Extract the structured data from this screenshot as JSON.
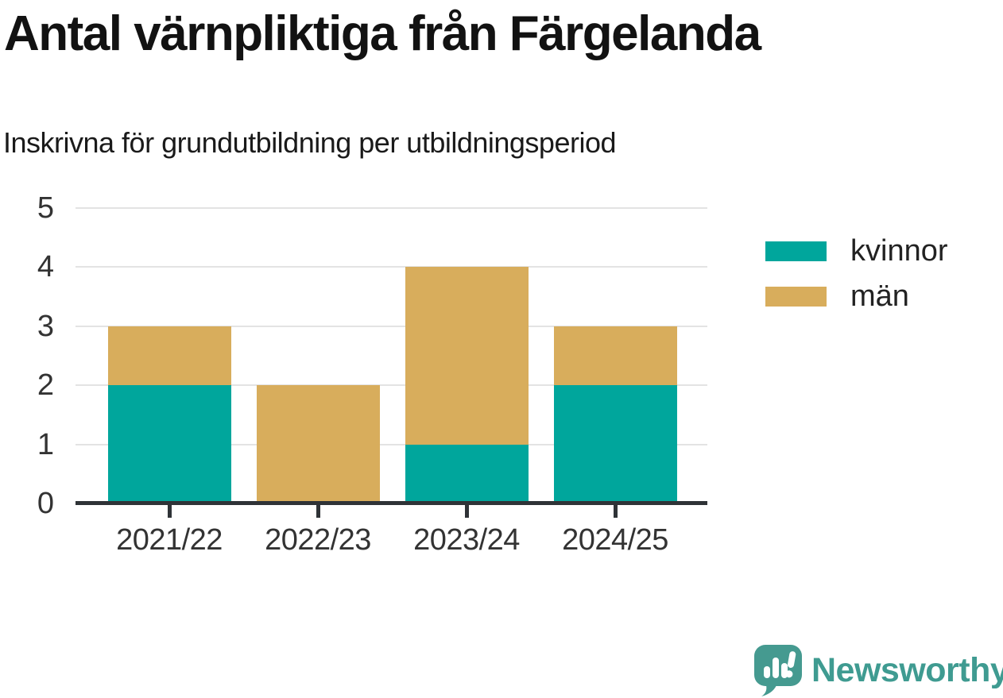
{
  "header": {
    "title": "Antal värnpliktiga från Färgelanda",
    "subtitle": "Inskrivna för grundutbildning per utbildningsperiod"
  },
  "footer": {
    "brand": "Newsworthy"
  },
  "colors": {
    "kvinnor": "#00A69C",
    "man": "#D8AD5C",
    "axis": "#2F3337",
    "grid": "#E3E3E3",
    "tick_label": "#333333",
    "brand_teal": "#3F9B91"
  },
  "chart_data": {
    "type": "bar",
    "stacked": true,
    "title": "Antal värnpliktiga från Färgelanda",
    "subtitle": "Inskrivna för grundutbildning per utbildningsperiod",
    "categories": [
      "2021/22",
      "2022/23",
      "2023/24",
      "2024/25"
    ],
    "series": [
      {
        "name": "kvinnor",
        "color": "#00A69C",
        "values": [
          2,
          0,
          1,
          2
        ]
      },
      {
        "name": "män",
        "color": "#D8AD5C",
        "values": [
          1,
          2,
          3,
          1
        ]
      }
    ],
    "totals": [
      3,
      2,
      4,
      3
    ],
    "xlabel": "",
    "ylabel": "",
    "ylim": [
      0,
      5
    ],
    "yticks": [
      0,
      1,
      2,
      3,
      4,
      5
    ],
    "grid": true,
    "legend_position": "right"
  }
}
